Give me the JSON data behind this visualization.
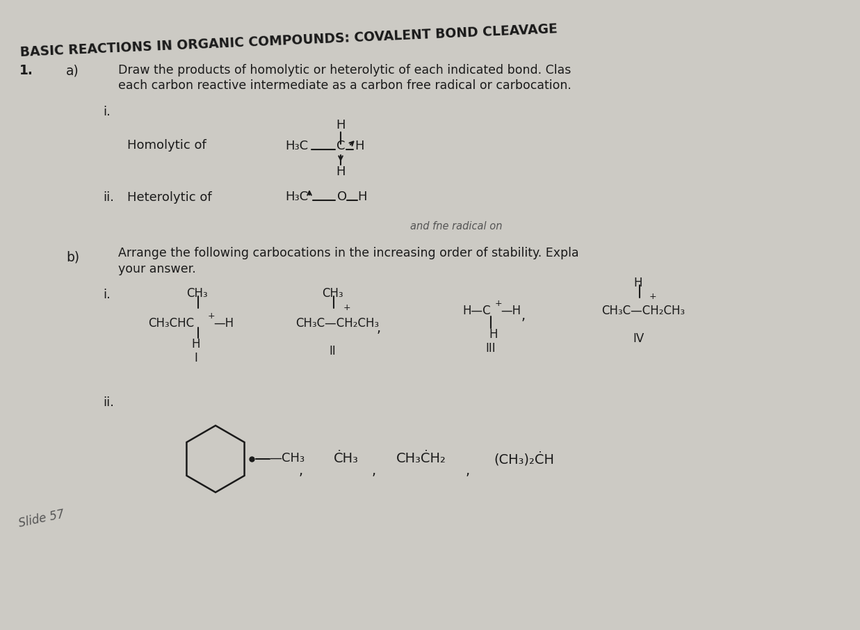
{
  "bg_color": "#cccac4",
  "text_color": "#1a1a1a",
  "title": "BASIC REACTIONS IN ORGANIC COMPOUNDS: COVALENT BOND CLEAVAGE",
  "q1": "1.",
  "qa": "a)",
  "qa1": "Draw the products of homolytic or heterolytic of each indicated bond. Clas",
  "qa2": "each carbon reactive intermediate as a carbon free radical or carbocation.",
  "qi": "i.",
  "qii": "ii.",
  "qb": "b)",
  "qb1": "Arrange the following carbocations in the increasing order of stability. Expla",
  "qb2": "your answer.",
  "qbi": "i.",
  "qbii": "ii.",
  "homolytic": "Homolytic of",
  "heterolytic": "Heterolytic of",
  "handwritten": "and fne radical on",
  "slide": "Slide 57"
}
